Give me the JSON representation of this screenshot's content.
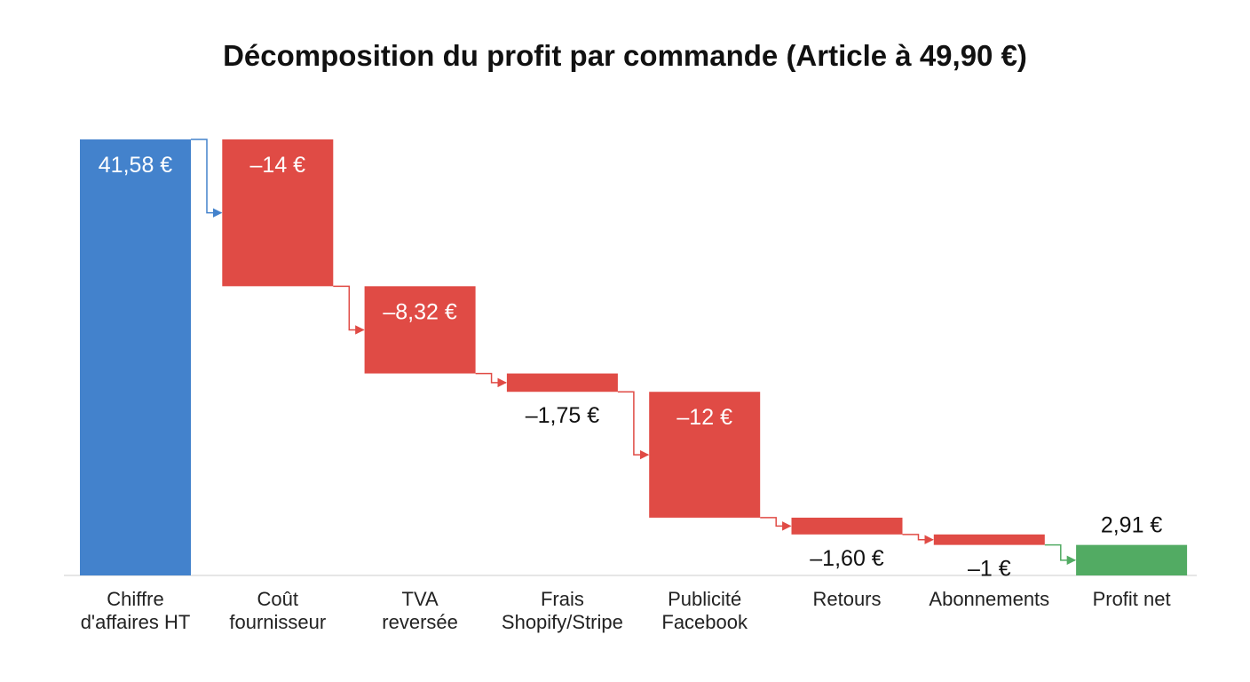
{
  "colors": {
    "total": "#4382CC",
    "decrease": "#E04B45",
    "net": "#52AB63",
    "baseline": "#DDDDDD"
  },
  "chart_data": {
    "type": "waterfall",
    "title": "Décomposition du profit par commande (Article à 49,90 €)",
    "xlabel": "",
    "ylabel": "",
    "ylim": [
      0,
      41.58
    ],
    "grid": false,
    "steps": [
      {
        "category": [
          "Chiffre",
          "d'affaires HT"
        ],
        "value": 41.58,
        "kind": "total",
        "label": "41,58 €",
        "label_pos": "inside"
      },
      {
        "category": [
          "Coût",
          "fournisseur"
        ],
        "value": -14,
        "kind": "decrease",
        "label": "–14 €",
        "label_pos": "inside"
      },
      {
        "category": [
          "TVA",
          "reversée"
        ],
        "value": -8.32,
        "kind": "decrease",
        "label": "–8,32 €",
        "label_pos": "inside"
      },
      {
        "category": [
          "Frais",
          "Shopify/Stripe"
        ],
        "value": -1.75,
        "kind": "decrease",
        "label": "–1,75 €",
        "label_pos": "below"
      },
      {
        "category": [
          "Publicité",
          "Facebook"
        ],
        "value": -12,
        "kind": "decrease",
        "label": "–12 €",
        "label_pos": "inside"
      },
      {
        "category": [
          "Retours"
        ],
        "value": -1.6,
        "kind": "decrease",
        "label": "–1,60 €",
        "label_pos": "below"
      },
      {
        "category": [
          "Abonnements"
        ],
        "value": -1,
        "kind": "decrease",
        "label": "–1 €",
        "label_pos": "below"
      },
      {
        "category": [
          "Profit net"
        ],
        "value": 2.91,
        "kind": "net",
        "label": "2,91 €",
        "label_pos": "above"
      }
    ]
  }
}
